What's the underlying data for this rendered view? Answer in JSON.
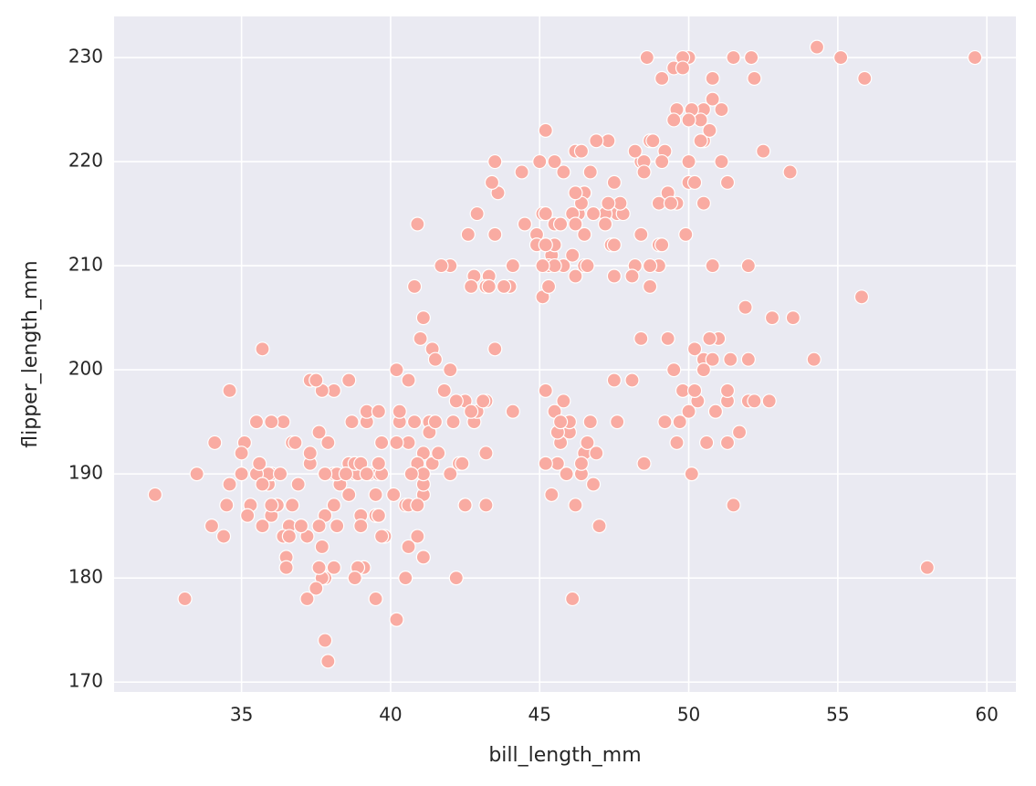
{
  "chart_data": {
    "type": "scatter",
    "x_label": "bill_length_mm",
    "y_label": "flipper_length_mm",
    "color": "#f9aba2",
    "grid": true,
    "xlim": [
      30.725,
      60.975
    ],
    "ylim": [
      169.05,
      233.95
    ],
    "xticks": [
      35,
      40,
      45,
      50,
      55,
      60
    ],
    "yticks": [
      170,
      180,
      190,
      200,
      210,
      220,
      230
    ],
    "x": [
      39.1,
      39.5,
      40.3,
      36.7,
      39.3,
      38.9,
      39.2,
      34.1,
      42.0,
      37.8,
      37.8,
      41.1,
      38.6,
      34.6,
      36.6,
      38.7,
      42.5,
      34.4,
      46.0,
      37.8,
      37.7,
      35.9,
      38.2,
      38.8,
      35.3,
      40.6,
      40.5,
      37.9,
      40.5,
      39.5,
      37.2,
      39.5,
      40.9,
      36.4,
      39.2,
      38.8,
      42.2,
      37.6,
      39.8,
      36.5,
      40.8,
      36.0,
      44.1,
      37.0,
      39.6,
      41.1,
      37.5,
      36.0,
      42.3,
      39.6,
      40.1,
      35.0,
      42.0,
      34.5,
      41.4,
      39.0,
      40.6,
      36.5,
      37.6,
      35.7,
      41.3,
      37.6,
      41.1,
      36.4,
      41.6,
      35.5,
      41.1,
      35.9,
      41.8,
      33.5,
      39.7,
      39.6,
      45.8,
      35.5,
      42.8,
      40.9,
      37.2,
      36.2,
      42.1,
      34.6,
      42.9,
      36.7,
      35.1,
      37.3,
      41.3,
      36.3,
      36.9,
      38.3,
      38.9,
      35.7,
      41.1,
      34.0,
      39.6,
      36.2,
      40.8,
      38.1,
      40.3,
      33.1,
      43.2,
      35.0,
      41.0,
      37.7,
      37.8,
      37.9,
      39.7,
      38.6,
      38.2,
      38.1,
      43.2,
      38.1,
      45.6,
      39.7,
      42.2,
      39.6,
      42.7,
      38.6,
      37.3,
      35.7,
      41.1,
      36.2,
      37.7,
      40.2,
      41.4,
      35.2,
      40.6,
      38.8,
      41.5,
      39.0,
      44.1,
      38.5,
      43.1,
      36.8,
      37.5,
      38.1,
      41.1,
      35.6,
      40.2,
      37.0,
      39.7,
      40.2,
      40.6,
      32.1,
      40.7,
      37.3,
      39.0,
      39.2,
      36.6,
      36.0,
      37.8,
      36.0,
      41.5,
      46.5,
      50.0,
      51.3,
      45.4,
      52.7,
      45.2,
      46.1,
      51.3,
      46.0,
      51.3,
      46.6,
      51.7,
      47.0,
      52.0,
      45.9,
      50.5,
      50.3,
      58.0,
      46.4,
      49.2,
      42.4,
      48.5,
      43.2,
      50.6,
      46.7,
      52.0,
      50.5,
      49.5,
      46.4,
      52.8,
      40.9,
      54.2,
      42.5,
      51.0,
      49.7,
      47.5,
      47.6,
      52.0,
      46.9,
      53.5,
      49.0,
      46.2,
      50.9,
      45.5,
      50.9,
      50.8,
      50.1,
      49.0,
      51.5,
      49.8,
      48.1,
      51.4,
      45.7,
      50.7,
      42.5,
      52.2,
      45.2,
      49.3,
      50.2,
      45.6,
      51.9,
      46.8,
      45.7,
      55.8,
      43.5,
      49.6,
      50.8,
      50.2,
      46.1,
      50.0,
      48.7,
      50.0,
      47.6,
      46.5,
      45.4,
      46.7,
      43.3,
      46.8,
      40.9,
      49.0,
      45.5,
      48.4,
      45.8,
      49.3,
      42.0,
      49.2,
      46.2,
      48.7,
      50.2,
      45.1,
      46.5,
      46.3,
      42.9,
      46.1,
      47.8,
      48.2,
      50.0,
      47.3,
      42.8,
      45.1,
      59.6,
      49.1,
      48.4,
      42.6,
      44.4,
      44.0,
      48.7,
      42.7,
      49.6,
      45.3,
      49.6,
      50.5,
      43.6,
      45.5,
      50.5,
      44.9,
      45.2,
      46.6,
      48.5,
      45.1,
      50.1,
      46.5,
      45.0,
      43.8,
      45.5,
      43.2,
      50.4,
      45.3,
      46.2,
      45.7,
      54.3,
      45.8,
      49.8,
      46.2,
      49.5,
      43.5,
      50.7,
      47.7,
      46.4,
      48.2,
      46.5,
      46.4,
      48.6,
      47.5,
      51.1,
      45.2,
      45.2,
      49.1,
      52.5,
      47.4,
      50.0,
      44.9,
      50.8,
      43.4,
      51.3,
      47.5,
      52.1,
      47.5,
      52.2,
      45.5,
      49.5,
      44.5,
      50.8,
      49.4,
      46.9,
      48.4,
      51.1,
      48.5,
      55.9,
      47.2,
      49.1,
      47.3,
      46.8,
      41.7,
      53.4,
      43.3,
      48.1,
      50.5,
      49.8,
      43.5,
      51.5,
      46.2,
      55.1,
      48.8,
      47.2,
      46.8,
      50.4,
      45.2,
      49.9
    ],
    "values": [
      181,
      186,
      195,
      193,
      190,
      181,
      195,
      193,
      190,
      186,
      180,
      182,
      191,
      198,
      185,
      195,
      197,
      184,
      194,
      174,
      180,
      189,
      185,
      180,
      187,
      183,
      187,
      172,
      180,
      178,
      178,
      188,
      184,
      195,
      196,
      190,
      180,
      181,
      184,
      182,
      195,
      186,
      196,
      185,
      190,
      182,
      179,
      190,
      191,
      186,
      188,
      190,
      200,
      187,
      191,
      186,
      193,
      181,
      194,
      185,
      195,
      185,
      192,
      184,
      192,
      195,
      188,
      190,
      198,
      190,
      190,
      196,
      197,
      190,
      195,
      191,
      184,
      187,
      195,
      189,
      196,
      187,
      193,
      191,
      194,
      190,
      189,
      189,
      190,
      202,
      205,
      185,
      186,
      187,
      208,
      190,
      196,
      178,
      192,
      192,
      203,
      183,
      190,
      193,
      184,
      199,
      190,
      181,
      197,
      198,
      191,
      193,
      197,
      191,
      196,
      188,
      199,
      189,
      189,
      187,
      198,
      176,
      202,
      186,
      199,
      191,
      195,
      191,
      210,
      190,
      197,
      193,
      199,
      187,
      190,
      191,
      200,
      185,
      193,
      193,
      187,
      188,
      190,
      192,
      185,
      190,
      184,
      195,
      190,
      187,
      201,
      192,
      196,
      193,
      188,
      197,
      198,
      178,
      197,
      195,
      198,
      193,
      194,
      185,
      201,
      190,
      201,
      197,
      181,
      190,
      195,
      191,
      191,
      187,
      193,
      195,
      197,
      200,
      200,
      191,
      205,
      187,
      201,
      187,
      203,
      195,
      199,
      195,
      210,
      192,
      205,
      210,
      187,
      196,
      196,
      196,
      201,
      190,
      212,
      187,
      198,
      199,
      201,
      193,
      203,
      187,
      197,
      191,
      203,
      202,
      194,
      206,
      189,
      195,
      207,
      202,
      193,
      210,
      198,
      211,
      230,
      210,
      218,
      215,
      210,
      211,
      219,
      209,
      215,
      214,
      216,
      214,
      213,
      210,
      217,
      210,
      221,
      209,
      222,
      218,
      215,
      213,
      215,
      215,
      215,
      215,
      210,
      220,
      222,
      209,
      207,
      230,
      220,
      220,
      213,
      219,
      208,
      208,
      208,
      225,
      210,
      216,
      222,
      217,
      210,
      225,
      213,
      215,
      210,
      220,
      210,
      225,
      217,
      220,
      208,
      220,
      208,
      224,
      208,
      221,
      214,
      231,
      219,
      230,
      214,
      229,
      220,
      223,
      216,
      221,
      221,
      217,
      216,
      230,
      209,
      220,
      215,
      223,
      212,
      221,
      212,
      224,
      212,
      228,
      218,
      218,
      212,
      230,
      218,
      228,
      212,
      224,
      214,
      226,
      216,
      222,
      203,
      225,
      219,
      228,
      215,
      228,
      216,
      215,
      210,
      219,
      208,
      209,
      216,
      229,
      213,
      230,
      217,
      230,
      222,
      214,
      215,
      222,
      212,
      213
    ]
  }
}
